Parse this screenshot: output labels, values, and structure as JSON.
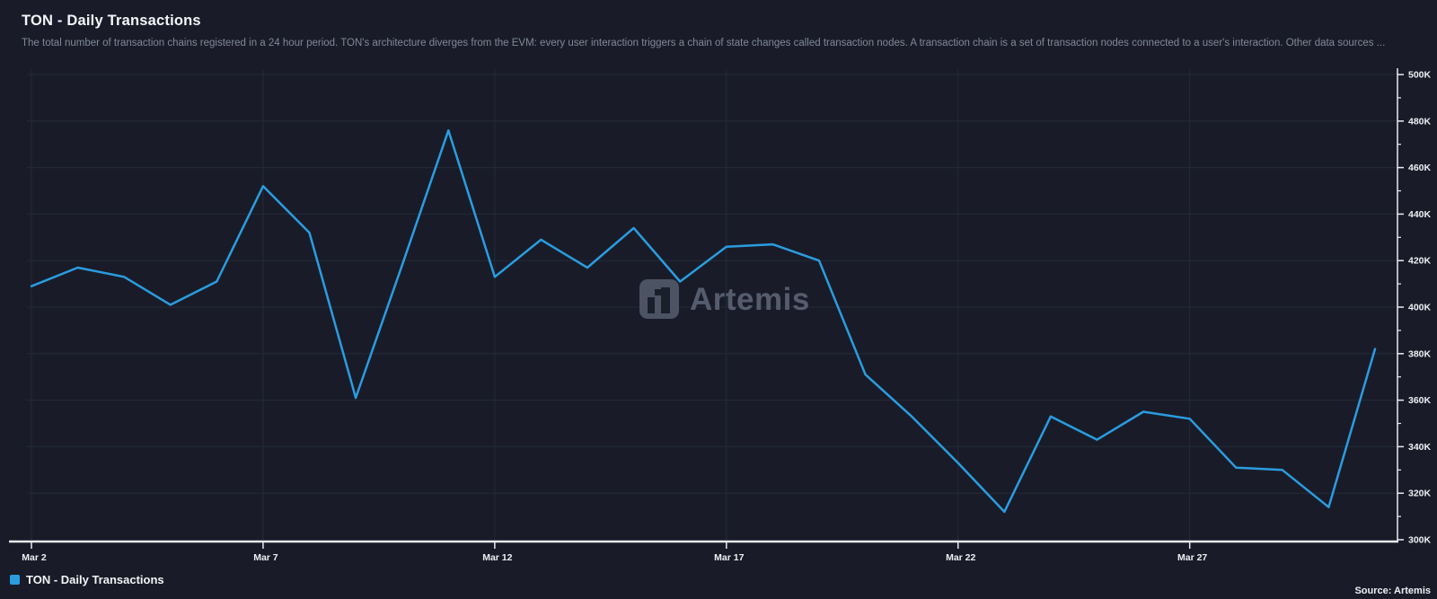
{
  "header": {
    "title": "TON - Daily Transactions",
    "subtitle": "The total number of transaction chains registered in a 24 hour period. TON's architecture diverges from the EVM: every user interaction triggers a chain of state changes called transaction nodes. A transaction chain is a set of transaction nodes connected to a user's interaction. Other data sources ..."
  },
  "chart_data": {
    "type": "line",
    "title": "TON - Daily Transactions",
    "x": [
      "Mar 2",
      "Mar 3",
      "Mar 4",
      "Mar 5",
      "Mar 6",
      "Mar 7",
      "Mar 8",
      "Mar 9",
      "Mar 10",
      "Mar 11",
      "Mar 12",
      "Mar 13",
      "Mar 14",
      "Mar 15",
      "Mar 16",
      "Mar 17",
      "Mar 18",
      "Mar 19",
      "Mar 20",
      "Mar 21",
      "Mar 22",
      "Mar 23",
      "Mar 24",
      "Mar 25",
      "Mar 26",
      "Mar 27",
      "Mar 28",
      "Mar 29",
      "Mar 30",
      "Mar 31"
    ],
    "series": [
      {
        "name": "TON - Daily Transactions",
        "color": "#2b9ce0",
        "values": [
          409000,
          417000,
          413000,
          401000,
          411000,
          452000,
          432000,
          361000,
          418000,
          476000,
          413000,
          429000,
          417000,
          434000,
          411000,
          426000,
          427000,
          420000,
          371000,
          353000,
          333000,
          312000,
          353000,
          343000,
          355000,
          352000,
          331000,
          330000,
          314000,
          382000
        ]
      }
    ],
    "ylim": [
      300000,
      500000
    ],
    "yticks": [
      {
        "value": 300000,
        "label": "300K"
      },
      {
        "value": 320000,
        "label": "320K"
      },
      {
        "value": 340000,
        "label": "340K"
      },
      {
        "value": 360000,
        "label": "360K"
      },
      {
        "value": 380000,
        "label": "380K"
      },
      {
        "value": 400000,
        "label": "400K"
      },
      {
        "value": 420000,
        "label": "420K"
      },
      {
        "value": 440000,
        "label": "440K"
      },
      {
        "value": 460000,
        "label": "460K"
      },
      {
        "value": 480000,
        "label": "480K"
      },
      {
        "value": 500000,
        "label": "500K"
      }
    ],
    "ytick_minor_step": 10000,
    "xticks": [
      {
        "index": 0,
        "label": "Mar 2"
      },
      {
        "index": 5,
        "label": "Mar 7"
      },
      {
        "index": 10,
        "label": "Mar 12"
      },
      {
        "index": 15,
        "label": "Mar 17"
      },
      {
        "index": 20,
        "label": "Mar 22"
      },
      {
        "index": 25,
        "label": "Mar 27"
      }
    ],
    "grid": true,
    "legend_position": "bottom-left",
    "y_axis_side": "right"
  },
  "legend": {
    "items": [
      {
        "label": "TON - Daily Transactions",
        "color": "#2b9ce0"
      }
    ]
  },
  "watermark": {
    "text": "Artemis"
  },
  "footer": {
    "source": "Source: Artemis"
  },
  "colors": {
    "background": "#191c28",
    "grid": "#252a38",
    "axis": "#e9ebf1",
    "tick_label": "#eef0f5",
    "line": "#2b9ce0",
    "watermark": "#4c5363"
  }
}
